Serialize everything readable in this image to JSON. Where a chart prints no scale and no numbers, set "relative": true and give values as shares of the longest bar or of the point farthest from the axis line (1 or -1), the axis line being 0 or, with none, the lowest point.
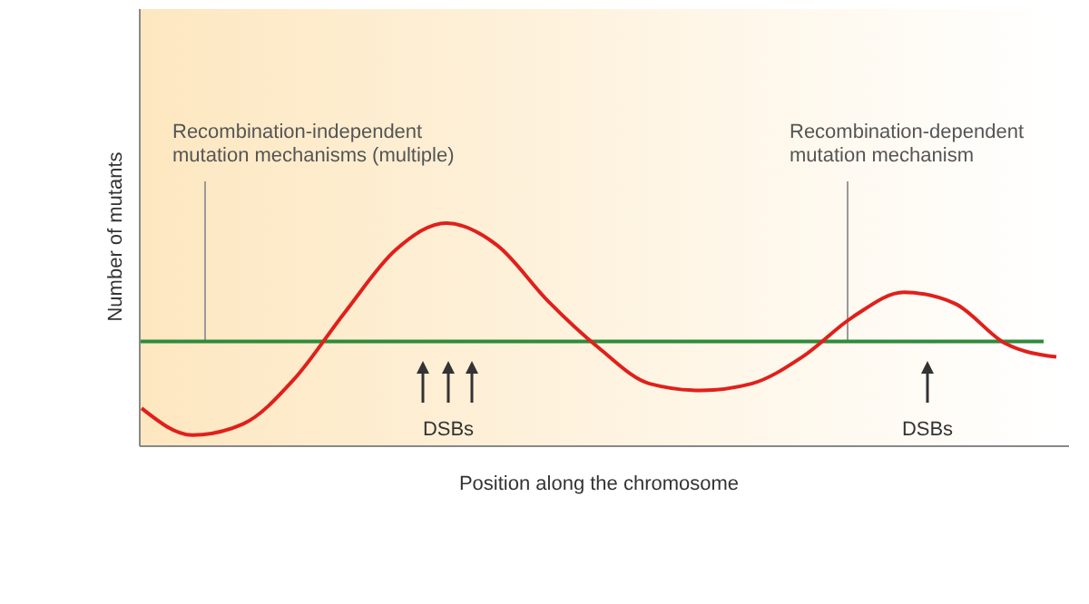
{
  "chart_data": {
    "type": "line",
    "relative": true,
    "xlabel": "Position along the chromosome",
    "ylabel": "Number of mutants",
    "categories": [
      null,
      null,
      null,
      null,
      null,
      null,
      null,
      null,
      null,
      null,
      null,
      null,
      null,
      null,
      null,
      null,
      null,
      null,
      null
    ],
    "series": [
      {
        "color": "#e0201b",
        "values": [
          0.17,
          0.05,
          0.1,
          0.3,
          0.6,
          0.88,
          1,
          0.9,
          0.65,
          0.44,
          0.28,
          0.25,
          0.28,
          0.4,
          0.58,
          0.69,
          0.64,
          0.46,
          0.4
        ]
      }
    ],
    "ref_lines": [
      {
        "axis": "y",
        "value": 0.47,
        "color": "#2e8b3a"
      }
    ],
    "annotations": [
      "Recombination-independent mutation mechanisms (multiple)",
      "Recombination-dependent mutation mechanism",
      "DSBs",
      "DSBs"
    ],
    "marker": "none",
    "line_style": "solid"
  }
}
